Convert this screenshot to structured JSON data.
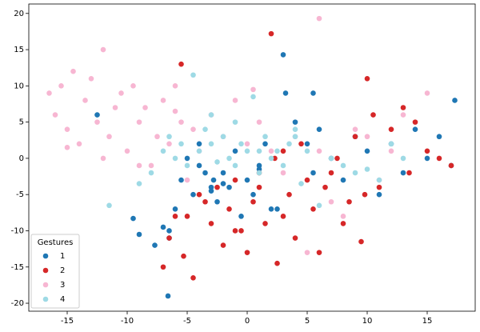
{
  "chart_data": {
    "type": "scatter",
    "legend_title": "Gestures",
    "legend": "lower left",
    "xlim": [
      -18.2,
      19.0
    ],
    "ylim": [
      -21.1,
      21.3
    ],
    "xticks": [
      -15,
      -10,
      -5,
      0,
      5,
      10,
      15
    ],
    "yticks": [
      -20,
      -15,
      -10,
      -5,
      0,
      5,
      10,
      15,
      20
    ],
    "series": [
      {
        "name": "1",
        "color": "#1f77b4",
        "x": [
          -12.5,
          -9.5,
          -9,
          -7.7,
          -7,
          -6.6,
          -6.5,
          -6,
          -5.5,
          -5,
          -4.5,
          -4,
          -3.5,
          -3,
          -2.8,
          -2.5,
          -2,
          -1.5,
          -1,
          -0.5,
          0,
          0.5,
          1,
          1.5,
          2,
          3,
          3.2,
          4,
          5,
          5.5,
          6,
          7,
          8,
          9,
          10,
          11,
          12,
          13,
          14,
          15,
          16,
          17.3,
          17,
          -6.5,
          -3,
          -2,
          1,
          5.5,
          -4,
          2.5
        ],
        "values": [
          6,
          -8.3,
          -10.5,
          -12,
          -9.5,
          -19,
          -11,
          -7,
          -3,
          0,
          -5,
          -1,
          -2,
          -4,
          -3,
          -6,
          -2,
          -4,
          1,
          -8,
          -3,
          -5,
          -1,
          2,
          -7,
          14.3,
          9,
          5,
          2,
          9,
          4,
          0,
          -3,
          3,
          1,
          -5,
          2,
          -2,
          4,
          0,
          3,
          8,
          -1,
          -10,
          -4.5,
          -3.5,
          -1.5,
          -2,
          2,
          -7
        ]
      },
      {
        "name": "2",
        "color": "#d62728",
        "x": [
          -7,
          -6.5,
          -5.5,
          -5.3,
          -5,
          -4.5,
          -4,
          -3.5,
          -3,
          -2.5,
          -2,
          -1.5,
          -1,
          -0.5,
          0,
          0.5,
          1,
          1.5,
          2,
          2.3,
          2.5,
          3,
          3.5,
          4,
          4.5,
          5,
          5.5,
          6,
          6.5,
          7,
          7.5,
          8,
          8.5,
          9,
          9.5,
          10,
          10.5,
          11,
          12,
          13,
          13.5,
          14,
          15,
          16,
          17,
          -6,
          -1,
          1,
          3,
          9.8
        ],
        "values": [
          -15,
          -11,
          13,
          -13.5,
          -8,
          -16.5,
          -5,
          -6,
          -9,
          -4,
          -12,
          -7,
          -3,
          -10,
          -13,
          -6,
          -2,
          -9,
          17.2,
          0,
          -14.5,
          -8,
          -5,
          -11,
          2,
          -3,
          -7,
          -13,
          -4,
          -2,
          0,
          -9,
          -6,
          3,
          -11.5,
          11,
          6,
          -4,
          4,
          7,
          -2,
          5,
          1,
          0,
          -1,
          -8,
          -10,
          -4,
          1,
          -5
        ]
      },
      {
        "name": "3",
        "color": "#f7b6d2",
        "x": [
          -16.5,
          -16,
          -15.5,
          -15,
          -14.5,
          -14,
          -13.5,
          -13,
          -12.5,
          -12,
          -11.5,
          -11,
          -10.5,
          -10,
          -9.5,
          -9,
          -8.5,
          -8,
          -7.5,
          -7,
          -6.5,
          -6,
          -5.5,
          -5,
          -4.5,
          -4,
          -3,
          -2,
          -1,
          0,
          0.5,
          1,
          2,
          3,
          4,
          5,
          6,
          6,
          7,
          8,
          9,
          10,
          11,
          12,
          13,
          15,
          -15,
          -12,
          -9,
          -6
        ],
        "values": [
          9,
          6,
          10,
          4,
          12,
          2,
          8,
          11,
          5,
          15,
          3,
          7,
          9,
          1,
          10,
          5,
          7,
          -1,
          3,
          8,
          2,
          10,
          5,
          -3,
          4,
          1,
          6,
          3,
          8,
          2,
          9.5,
          5,
          1,
          -2,
          3,
          -13,
          19.3,
          1,
          -6,
          -8,
          4,
          3,
          -3,
          1,
          6,
          9,
          1.5,
          0,
          -1,
          6.5
        ]
      },
      {
        "name": "4",
        "color": "#9edae5",
        "x": [
          -11.5,
          -9,
          -8,
          -7,
          -6.5,
          -6,
          -5.5,
          -5,
          -4.5,
          -4,
          -3.5,
          -3,
          -2.5,
          -2,
          -1.5,
          -1,
          -0.5,
          0,
          0.5,
          1,
          1.5,
          2,
          2.5,
          3,
          3.5,
          4,
          4.5,
          5,
          6,
          7,
          8,
          9,
          10,
          11,
          12,
          13,
          -3,
          -1,
          1,
          4
        ],
        "values": [
          -6.5,
          -3.5,
          -2,
          1,
          3,
          0,
          2,
          -1,
          11.5,
          1,
          4,
          2,
          -0.5,
          3,
          0,
          5,
          2,
          1,
          8.5,
          -2,
          3,
          0,
          1,
          -1,
          2,
          4,
          -3.5,
          1,
          -6.5,
          0,
          -1,
          -2,
          -1.5,
          -3,
          2,
          0,
          6,
          -1,
          1,
          3
        ]
      }
    ]
  }
}
